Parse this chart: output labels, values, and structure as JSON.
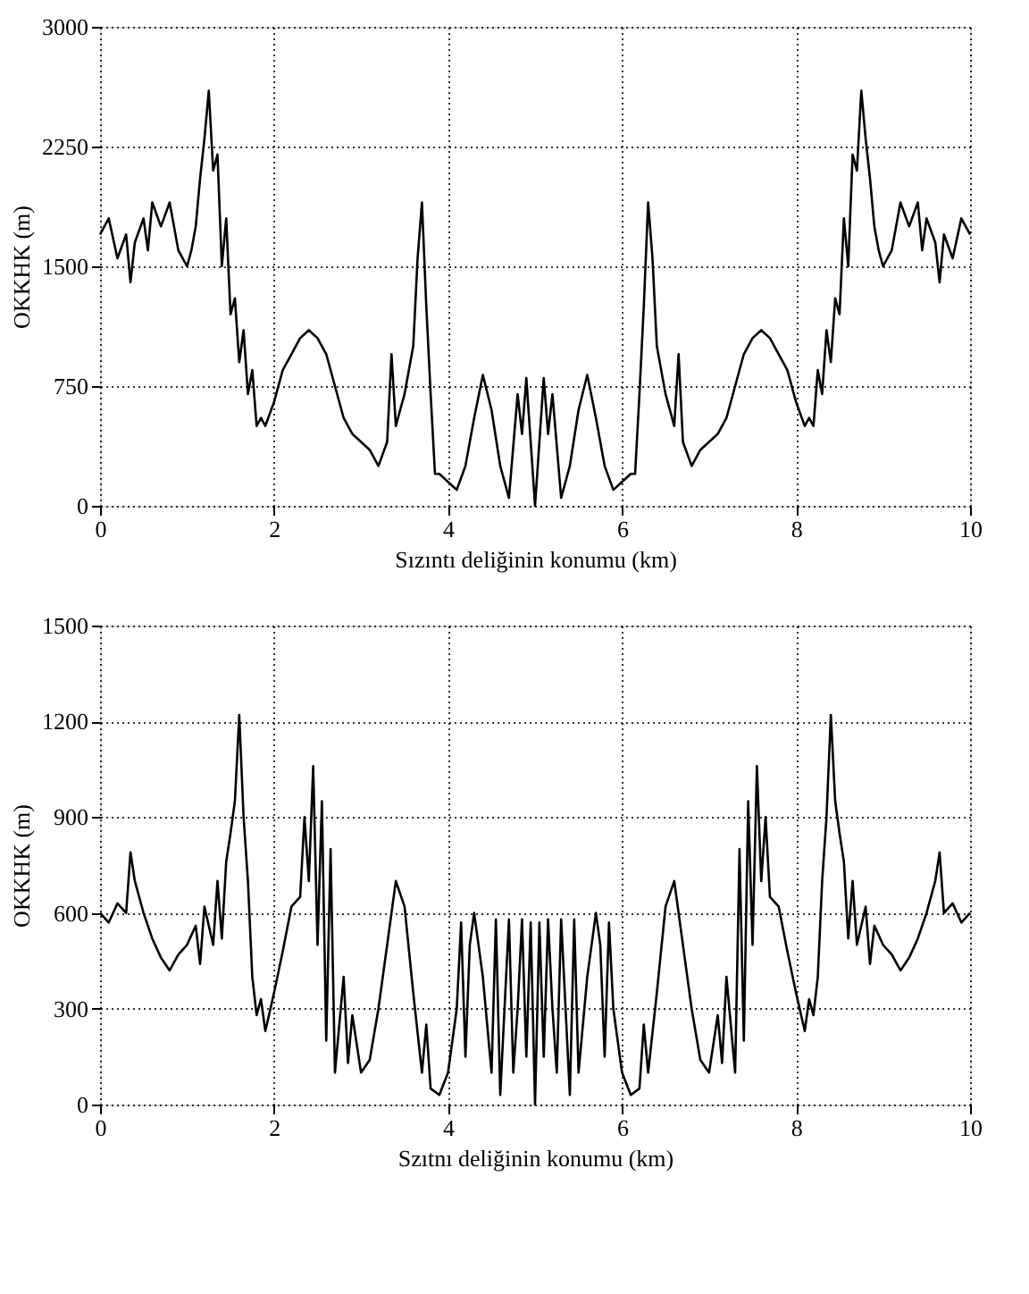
{
  "chart_data": [
    {
      "type": "line",
      "xlabel": "Sızıntı deliğinin konumu (km)",
      "ylabel": "OKKHK (m)",
      "xlim": [
        0,
        10
      ],
      "xticks": [
        0,
        2,
        4,
        6,
        8,
        10
      ],
      "ylim": [
        0,
        3000
      ],
      "yticks": [
        0,
        750,
        1500,
        2250,
        3000
      ],
      "grid": true,
      "series": [
        {
          "color": "#000000",
          "x": [
            0,
            0.1,
            0.2,
            0.3,
            0.35,
            0.4,
            0.5,
            0.55,
            0.6,
            0.7,
            0.8,
            0.9,
            1.0,
            1.05,
            1.1,
            1.15,
            1.2,
            1.25,
            1.3,
            1.35,
            1.4,
            1.45,
            1.5,
            1.55,
            1.6,
            1.65,
            1.7,
            1.75,
            1.8,
            1.85,
            1.9,
            2.0,
            2.1,
            2.2,
            2.3,
            2.4,
            2.5,
            2.6,
            2.7,
            2.8,
            2.9,
            3.0,
            3.1,
            3.2,
            3.3,
            3.35,
            3.4,
            3.5,
            3.6,
            3.65,
            3.7,
            3.75,
            3.8,
            3.85,
            3.9,
            4.0,
            4.1,
            4.2,
            4.3,
            4.4,
            4.5,
            4.6,
            4.7,
            4.8,
            4.85,
            4.9,
            4.95,
            5.0,
            5.05,
            5.1,
            5.15,
            5.2,
            5.3,
            5.4,
            5.5,
            5.6,
            5.7,
            5.8,
            5.9,
            6.0,
            6.1,
            6.15,
            6.2,
            6.25,
            6.3,
            6.35,
            6.4,
            6.5,
            6.6,
            6.65,
            6.7,
            6.8,
            6.9,
            7.0,
            7.1,
            7.2,
            7.3,
            7.4,
            7.5,
            7.6,
            7.7,
            7.8,
            7.9,
            8.0,
            8.1,
            8.15,
            8.2,
            8.25,
            8.3,
            8.35,
            8.4,
            8.45,
            8.5,
            8.55,
            8.6,
            8.65,
            8.7,
            8.75,
            8.8,
            8.85,
            8.9,
            8.95,
            9.0,
            9.1,
            9.2,
            9.3,
            9.4,
            9.45,
            9.5,
            9.6,
            9.65,
            9.7,
            9.8,
            9.9,
            10
          ],
          "values": [
            1700,
            1800,
            1550,
            1700,
            1400,
            1650,
            1800,
            1600,
            1900,
            1750,
            1900,
            1600,
            1500,
            1600,
            1750,
            2050,
            2300,
            2600,
            2100,
            2200,
            1500,
            1800,
            1200,
            1300,
            900,
            1100,
            700,
            850,
            500,
            550,
            500,
            650,
            850,
            950,
            1050,
            1100,
            1050,
            950,
            750,
            550,
            450,
            400,
            350,
            250,
            400,
            950,
            500,
            700,
            1000,
            1550,
            1900,
            1250,
            700,
            200,
            200,
            150,
            100,
            250,
            550,
            820,
            600,
            250,
            50,
            700,
            450,
            800,
            400,
            0,
            400,
            800,
            450,
            700,
            50,
            250,
            600,
            820,
            550,
            250,
            100,
            150,
            200,
            200,
            700,
            1250,
            1900,
            1550,
            1000,
            700,
            500,
            950,
            400,
            250,
            350,
            400,
            450,
            550,
            750,
            950,
            1050,
            1100,
            1050,
            950,
            850,
            650,
            500,
            550,
            500,
            850,
            700,
            1100,
            900,
            1300,
            1200,
            1800,
            1500,
            2200,
            2100,
            2600,
            2300,
            2050,
            1750,
            1600,
            1500,
            1600,
            1900,
            1750,
            1900,
            1600,
            1800,
            1650,
            1400,
            1700,
            1550,
            1800,
            1700
          ]
        }
      ]
    },
    {
      "type": "line",
      "xlabel": "Szıtnı deliğinin konumu (km)",
      "ylabel": "OKKHK (m)",
      "xlim": [
        0,
        10
      ],
      "xticks": [
        0,
        2,
        4,
        6,
        8,
        10
      ],
      "ylim": [
        0,
        1500
      ],
      "yticks": [
        0,
        300,
        600,
        900,
        1200,
        1500
      ],
      "grid": true,
      "series": [
        {
          "color": "#000000",
          "x": [
            0,
            0.1,
            0.2,
            0.3,
            0.35,
            0.4,
            0.5,
            0.6,
            0.7,
            0.8,
            0.9,
            1.0,
            1.1,
            1.15,
            1.2,
            1.3,
            1.35,
            1.4,
            1.45,
            1.5,
            1.55,
            1.6,
            1.65,
            1.7,
            1.75,
            1.8,
            1.85,
            1.9,
            2.0,
            2.1,
            2.2,
            2.3,
            2.35,
            2.4,
            2.45,
            2.5,
            2.55,
            2.6,
            2.65,
            2.7,
            2.8,
            2.85,
            2.9,
            3.0,
            3.1,
            3.2,
            3.3,
            3.4,
            3.5,
            3.6,
            3.7,
            3.75,
            3.8,
            3.9,
            4.0,
            4.1,
            4.15,
            4.2,
            4.25,
            4.3,
            4.4,
            4.5,
            4.55,
            4.6,
            4.7,
            4.75,
            4.8,
            4.85,
            4.9,
            4.95,
            5.0,
            5.05,
            5.1,
            5.15,
            5.2,
            5.25,
            5.3,
            5.4,
            5.45,
            5.5,
            5.6,
            5.7,
            5.75,
            5.8,
            5.85,
            5.9,
            6.0,
            6.1,
            6.2,
            6.25,
            6.3,
            6.4,
            6.5,
            6.6,
            6.7,
            6.8,
            6.9,
            7.0,
            7.1,
            7.15,
            7.2,
            7.3,
            7.35,
            7.4,
            7.45,
            7.5,
            7.55,
            7.6,
            7.65,
            7.7,
            7.8,
            7.9,
            8.0,
            8.1,
            8.15,
            8.2,
            8.25,
            8.3,
            8.35,
            8.4,
            8.45,
            8.5,
            8.55,
            8.6,
            8.65,
            8.7,
            8.8,
            8.85,
            8.9,
            9.0,
            9.1,
            9.2,
            9.3,
            9.4,
            9.5,
            9.6,
            9.65,
            9.7,
            9.8,
            9.9,
            10
          ],
          "values": [
            600,
            570,
            630,
            600,
            790,
            700,
            600,
            520,
            460,
            420,
            470,
            500,
            560,
            440,
            620,
            500,
            700,
            520,
            760,
            850,
            950,
            1220,
            900,
            700,
            400,
            280,
            330,
            230,
            350,
            480,
            620,
            650,
            900,
            700,
            1060,
            500,
            950,
            200,
            800,
            100,
            400,
            130,
            280,
            100,
            140,
            300,
            500,
            700,
            620,
            350,
            100,
            250,
            50,
            30,
            100,
            300,
            570,
            150,
            500,
            600,
            400,
            100,
            580,
            30,
            580,
            100,
            300,
            580,
            150,
            570,
            0,
            570,
            150,
            580,
            300,
            100,
            580,
            30,
            580,
            100,
            400,
            600,
            500,
            150,
            570,
            300,
            100,
            30,
            50,
            250,
            100,
            350,
            620,
            700,
            500,
            300,
            140,
            100,
            280,
            130,
            400,
            100,
            800,
            200,
            950,
            500,
            1060,
            700,
            900,
            650,
            620,
            480,
            350,
            230,
            330,
            280,
            400,
            700,
            900,
            1220,
            950,
            850,
            760,
            520,
            700,
            500,
            620,
            440,
            560,
            500,
            470,
            420,
            460,
            520,
            600,
            700,
            790,
            600,
            630,
            570,
            600
          ]
        }
      ]
    }
  ]
}
